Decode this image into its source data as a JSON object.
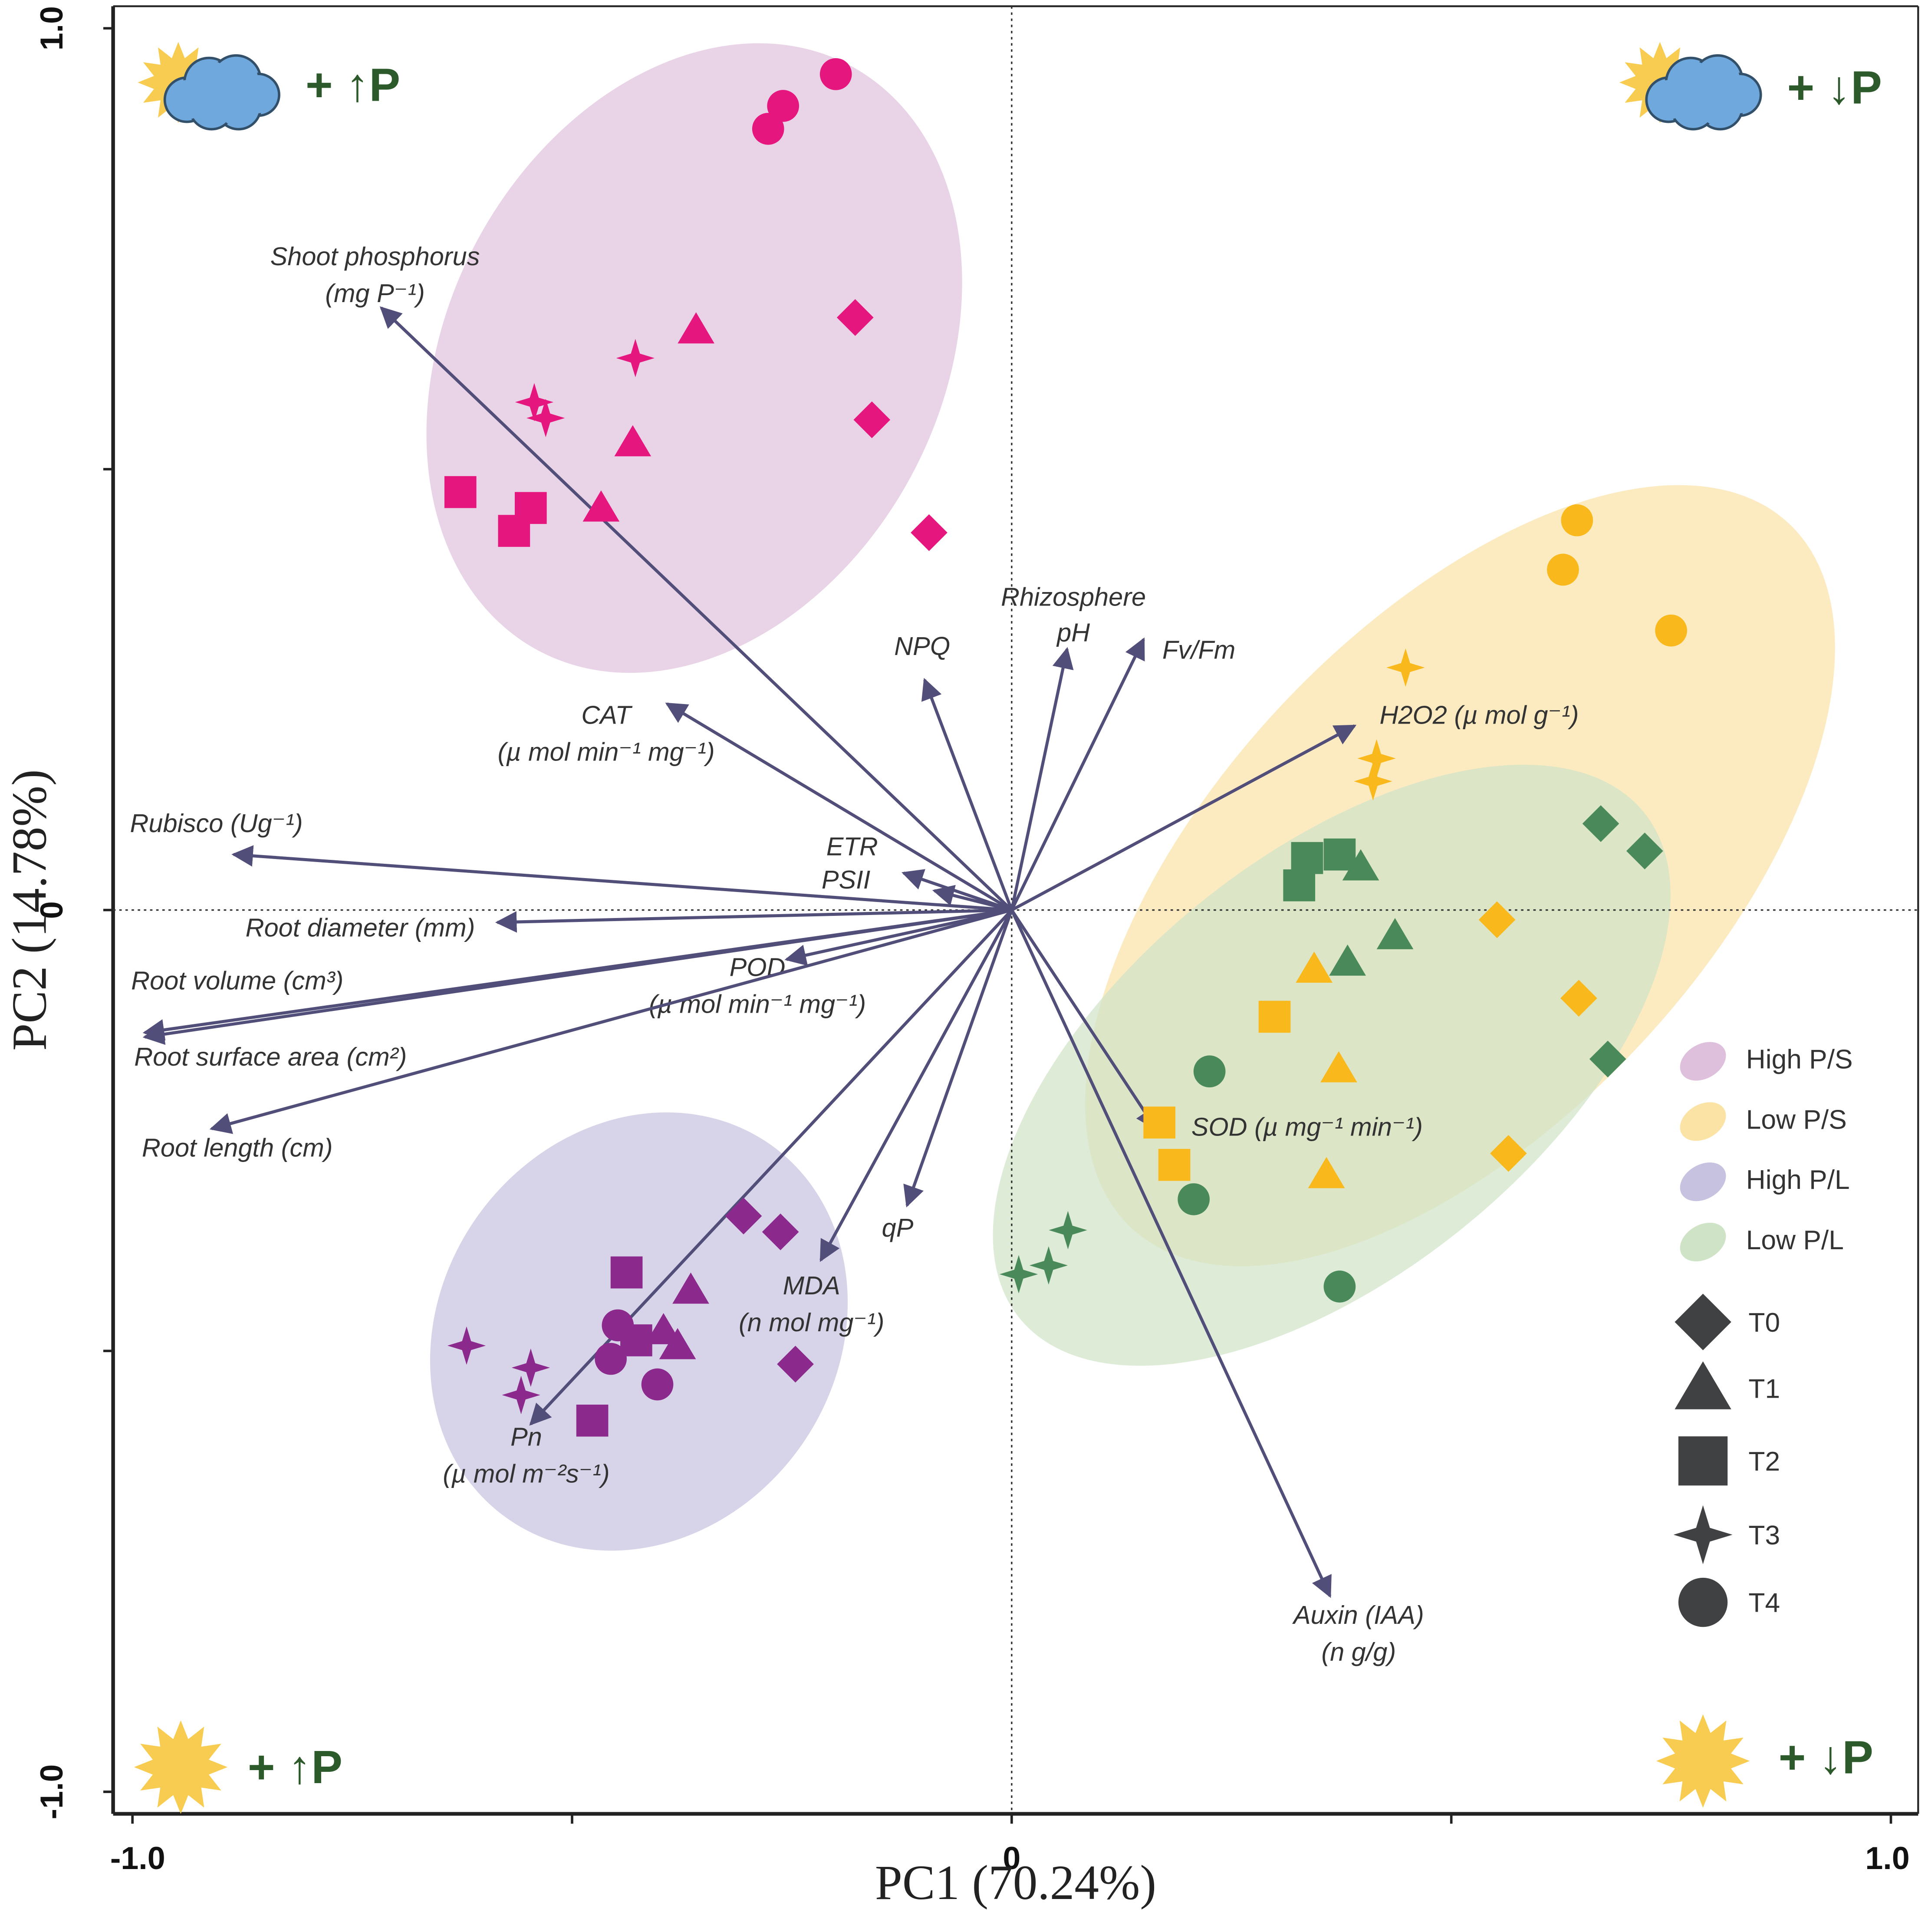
{
  "chart_data": {
    "type": "pca-biplot",
    "xlabel": "PC1 (70.24%)",
    "ylabel": "PC2 (14.78%)",
    "xlim": [
      -1.022,
      1.031
    ],
    "ylim": [
      -1.025,
      1.025
    ],
    "xticks": [
      {
        "value": -1.0,
        "label": "-1.0"
      },
      {
        "value": -0.5,
        "label": null
      },
      0,
      {
        "value": 0.5,
        "label": null
      },
      {
        "value": 1.0,
        "label": "1.0"
      }
    ],
    "yticks": [
      {
        "value": -1.0,
        "label": "-1.0"
      },
      {
        "value": -0.5,
        "label": null
      },
      0,
      {
        "value": 0.5,
        "label": null
      },
      {
        "value": 1.0,
        "label": "1.0"
      }
    ],
    "zero_lines": true,
    "treatments": [
      {
        "name": "T0",
        "marker": "diamond"
      },
      {
        "name": "T1",
        "marker": "triangle"
      },
      {
        "name": "T2",
        "marker": "square"
      },
      {
        "name": "T3",
        "marker": "star"
      },
      {
        "name": "T4",
        "marker": "circle"
      }
    ],
    "series": [
      {
        "name": "High P/S",
        "color": "#e5177f",
        "ellipse_color": "#dfc0dc",
        "ellipse": {
          "cx": -0.361,
          "cy": 0.626,
          "rx": 0.377,
          "ry": 0.28,
          "angle": 62
        },
        "treatment": [
          "T4",
          "T4",
          "T4",
          "T0",
          "T0",
          "T0",
          "T1",
          "T1",
          "T1",
          "T3",
          "T3",
          "T3",
          "T2",
          "T2",
          "T2"
        ],
        "x": [
          -0.2,
          -0.26,
          -0.277,
          -0.178,
          -0.159,
          -0.094,
          -0.359,
          -0.431,
          -0.467,
          -0.428,
          -0.543,
          -0.53,
          -0.627,
          -0.547,
          -0.566
        ],
        "y": [
          0.948,
          0.912,
          0.886,
          0.672,
          0.556,
          0.428,
          0.658,
          0.53,
          0.456,
          0.626,
          0.576,
          0.558,
          0.474,
          0.456,
          0.43
        ]
      },
      {
        "name": "Low P/S",
        "color": "#f9b81b",
        "ellipse_color": "#fbe3a6",
        "ellipse": {
          "cx": 0.51,
          "cy": 0.039,
          "rx": 0.548,
          "ry": 0.28,
          "angle": 47
        },
        "treatment": [
          "T4",
          "T4",
          "T4",
          "T3",
          "T3",
          "T3",
          "T0",
          "T0",
          "T0",
          "T1",
          "T1",
          "T1",
          "T2",
          "T2",
          "T2"
        ],
        "x": [
          0.643,
          0.627,
          0.75,
          0.448,
          0.415,
          0.411,
          0.552,
          0.645,
          0.565,
          0.344,
          0.372,
          0.358,
          0.299,
          0.168,
          0.185
        ],
        "y": [
          0.442,
          0.386,
          0.317,
          0.275,
          0.172,
          0.146,
          -0.011,
          -0.1,
          -0.276,
          -0.067,
          -0.18,
          -0.3,
          -0.121,
          -0.241,
          -0.289
        ]
      },
      {
        "name": "High P/L",
        "color": "#8b2a8c",
        "ellipse_color": "#c6c2df",
        "ellipse": {
          "cx": -0.424,
          "cy": -0.478,
          "rx": 0.26,
          "ry": 0.225,
          "angle": 55
        },
        "treatment": [
          "T0",
          "T0",
          "T0",
          "T2",
          "T2",
          "T2",
          "T1",
          "T1",
          "T1",
          "T3",
          "T3",
          "T3",
          "T4",
          "T4",
          "T4"
        ],
        "x": [
          -0.305,
          -0.263,
          -0.246,
          -0.438,
          -0.477,
          -0.427,
          -0.365,
          -0.396,
          -0.38,
          -0.62,
          -0.547,
          -0.558,
          -0.448,
          -0.456,
          -0.403
        ],
        "y": [
          -0.347,
          -0.365,
          -0.515,
          -0.411,
          -0.579,
          -0.488,
          -0.431,
          -0.477,
          -0.494,
          -0.494,
          -0.519,
          -0.55,
          -0.471,
          -0.509,
          -0.538
        ]
      },
      {
        "name": "Low P/L",
        "color": "#4a8a5a",
        "ellipse_color": "#cfe3c6",
        "ellipse": {
          "cx": 0.364,
          "cy": -0.176,
          "rx": 0.457,
          "ry": 0.237,
          "angle": 39
        },
        "treatment": [
          "T0",
          "T0",
          "T0",
          "T2",
          "T2",
          "T2",
          "T1",
          "T1",
          "T1",
          "T3",
          "T3",
          "T3",
          "T4",
          "T4",
          "T4"
        ],
        "x": [
          0.67,
          0.72,
          0.678,
          0.336,
          0.327,
          0.373,
          0.397,
          0.382,
          0.436,
          0.064,
          0.008,
          0.042,
          0.225,
          0.207,
          0.373
        ],
        "y": [
          0.098,
          0.067,
          -0.169,
          0.059,
          0.028,
          0.063,
          0.049,
          -0.059,
          -0.029,
          -0.363,
          -0.413,
          -0.403,
          -0.183,
          -0.328,
          -0.427
        ]
      }
    ],
    "loadings_color": "#524e7a",
    "loadings": [
      {
        "label": [
          "Shoot phosphorus",
          "(mg P⁻¹)"
        ],
        "x": -0.717,
        "y": 0.683
      },
      {
        "label": [
          "CAT",
          "(µ mol min⁻¹ mg⁻¹)"
        ],
        "x": -0.392,
        "y": 0.234
      },
      {
        "label": [
          "NPQ"
        ],
        "x": -0.099,
        "y": 0.261
      },
      {
        "label": [
          "Rhizosphere",
          "pH"
        ],
        "x": 0.063,
        "y": 0.296
      },
      {
        "label": [
          "Fv/Fm"
        ],
        "x": 0.15,
        "y": 0.307
      },
      {
        "label": [
          "H2O2 (µ mol g⁻¹)"
        ],
        "x": 0.39,
        "y": 0.209
      },
      {
        "label": [
          "Rubisco (Ug⁻¹)"
        ],
        "x": -0.885,
        "y": 0.063
      },
      {
        "label": [
          "ETR"
        ],
        "x": -0.123,
        "y": 0.042
      },
      {
        "label": [
          "PSII"
        ],
        "x": -0.088,
        "y": 0.022
      },
      {
        "label": [
          "Root diameter (mm)"
        ],
        "x": -0.585,
        "y": -0.014
      },
      {
        "label": [
          "POD",
          "(µ mol min⁻¹ mg⁻¹)"
        ],
        "x": -0.256,
        "y": -0.056
      },
      {
        "label": [
          "Root volume (cm³)"
        ],
        "x": -0.986,
        "y": -0.139
      },
      {
        "label": [
          "Root surface area (cm²)"
        ],
        "x": -0.986,
        "y": -0.144
      },
      {
        "label": [
          "Root length (cm)"
        ],
        "x": -0.91,
        "y": -0.248
      },
      {
        "label": [
          "qP"
        ],
        "x": -0.119,
        "y": -0.335
      },
      {
        "label": [
          "MDA",
          "(n mol mg⁻¹)"
        ],
        "x": -0.217,
        "y": -0.397
      },
      {
        "label": [
          "Pn",
          "(µ mol m⁻²s⁻¹)"
        ],
        "x": -0.547,
        "y": -0.583
      },
      {
        "label": [
          "SOD (µ mg⁻¹ min⁻¹)"
        ],
        "x": 0.164,
        "y": -0.248
      },
      {
        "label": [
          "Auxin (IAA)",
          "(n g/g)"
        ],
        "x": 0.362,
        "y": -0.778
      }
    ],
    "annotations": [
      "+ ↑P",
      "+ ↓P",
      "+ ↑P",
      "+ ↓P"
    ]
  }
}
